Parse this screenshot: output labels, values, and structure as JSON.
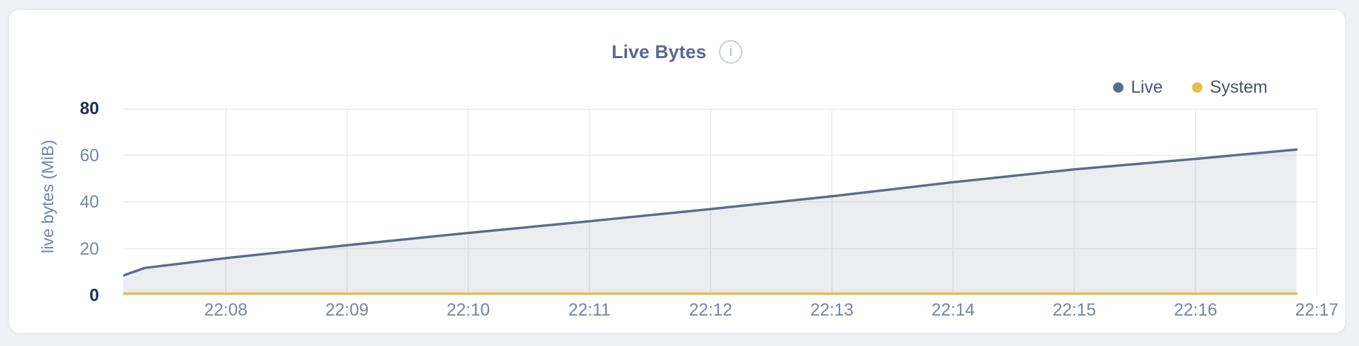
{
  "colors": {
    "page_bg": "#eff1f5",
    "card_bg": "#ffffff",
    "card_border": "#e4e6eb",
    "title": "#57698c",
    "tick": "#7487a1",
    "tick_strong": "#1e2f50",
    "grid": "#ececf0",
    "legend_text": "#4b5468",
    "info_icon": "#b5bac4",
    "live": "#5d6c8b",
    "system": "#e9bd52"
  },
  "header": {
    "info_icon": "i"
  },
  "chart_data": {
    "type": "area",
    "title": "Live Bytes",
    "ylabel": "live bytes (MiB)",
    "xlabel": "",
    "ylim": [
      0,
      80
    ],
    "y_ticks": [
      80,
      60,
      40,
      20,
      0
    ],
    "x_ticks": [
      "22:08",
      "22:09",
      "22:10",
      "22:11",
      "22:12",
      "22:13",
      "22:14",
      "22:15",
      "22:16",
      "22:17"
    ],
    "grid": true,
    "legend": {
      "position": "top-right",
      "entries": [
        "Live",
        "System"
      ]
    },
    "series": [
      {
        "name": "Live",
        "color": "#5d6c8b",
        "fill_color": "rgba(93,108,139,0.12)",
        "area": true,
        "points": [
          {
            "t": "22:07:09",
            "v": 8.5
          },
          {
            "t": "22:07:20",
            "v": 11.8
          },
          {
            "t": "22:08:00",
            "v": 16.0
          },
          {
            "t": "22:09:00",
            "v": 21.5
          },
          {
            "t": "22:10:00",
            "v": 26.8
          },
          {
            "t": "22:11:00",
            "v": 31.8
          },
          {
            "t": "22:12:00",
            "v": 37.0
          },
          {
            "t": "22:13:00",
            "v": 42.5
          },
          {
            "t": "22:14:00",
            "v": 48.5
          },
          {
            "t": "22:15:00",
            "v": 54.0
          },
          {
            "t": "22:16:00",
            "v": 58.5
          },
          {
            "t": "22:16:50",
            "v": 62.5
          }
        ]
      },
      {
        "name": "System",
        "color": "#e9bd52",
        "fill_color": null,
        "area": false,
        "points": [
          {
            "t": "22:07:09",
            "v": 0.8
          },
          {
            "t": "22:16:50",
            "v": 0.8
          }
        ]
      }
    ]
  }
}
